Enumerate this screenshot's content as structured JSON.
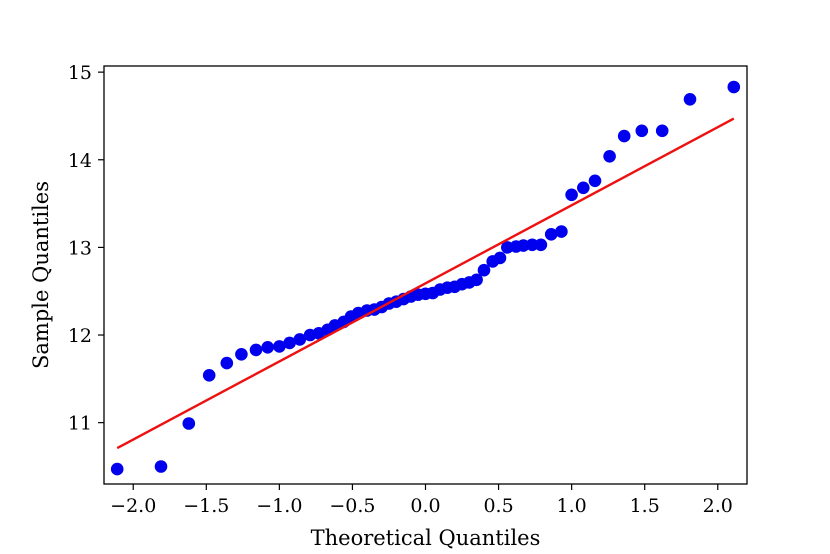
{
  "chart_data": {
    "type": "scatter",
    "title": "",
    "xlabel": "Theoretical Quantiles",
    "ylabel": "Sample Quantiles",
    "xlim": [
      -2.2,
      2.2
    ],
    "ylim": [
      10.3,
      15.07
    ],
    "x_ticks": [
      -2.0,
      -1.5,
      -1.0,
      -0.5,
      0.0,
      0.5,
      1.0,
      1.5,
      2.0
    ],
    "x_tick_labels": [
      "−2.0",
      "−1.5",
      "−1.0",
      "−0.5",
      "0.0",
      "0.5",
      "1.0",
      "1.5",
      "2.0"
    ],
    "y_ticks": [
      11,
      12,
      13,
      14,
      15
    ],
    "y_tick_labels": [
      "11",
      "12",
      "13",
      "14",
      "15"
    ],
    "grid": false,
    "colors": {
      "points": "#0000ee",
      "reference_line": "#ee1111"
    },
    "series": [
      {
        "x": [
          -2.11,
          -1.81,
          -1.62,
          -1.48,
          -1.36,
          -1.26,
          -1.16,
          -1.08,
          -1.0,
          -0.93,
          -0.86,
          -0.79,
          -0.73,
          -0.67,
          -0.62,
          -0.56,
          -0.51,
          -0.46,
          -0.4,
          -0.35,
          -0.3,
          -0.25,
          -0.2,
          -0.15,
          -0.1,
          -0.05,
          0.0,
          0.05,
          0.1,
          0.15,
          0.2,
          0.25,
          0.3,
          0.35,
          0.4,
          0.46,
          0.51,
          0.56,
          0.62,
          0.67,
          0.73,
          0.79,
          0.86,
          0.93,
          1.0,
          1.08,
          1.16,
          1.26,
          1.36,
          1.48,
          1.62,
          1.81,
          2.11
        ],
        "y": [
          10.47,
          10.5,
          10.99,
          11.54,
          11.68,
          11.78,
          11.83,
          11.86,
          11.87,
          11.91,
          11.95,
          12.0,
          12.02,
          12.06,
          12.11,
          12.15,
          12.21,
          12.25,
          12.28,
          12.29,
          12.32,
          12.36,
          12.38,
          12.41,
          12.44,
          12.46,
          12.47,
          12.48,
          12.52,
          12.54,
          12.55,
          12.58,
          12.6,
          12.63,
          12.74,
          12.84,
          12.88,
          13.0,
          13.01,
          13.02,
          13.03,
          13.03,
          13.15,
          13.18,
          13.6,
          13.68,
          13.76,
          14.04,
          14.27,
          14.33,
          14.33,
          14.69,
          14.83
        ]
      }
    ],
    "reference_line": {
      "x": [
        -2.11,
        2.11
      ],
      "y": [
        10.71,
        14.47
      ]
    }
  }
}
